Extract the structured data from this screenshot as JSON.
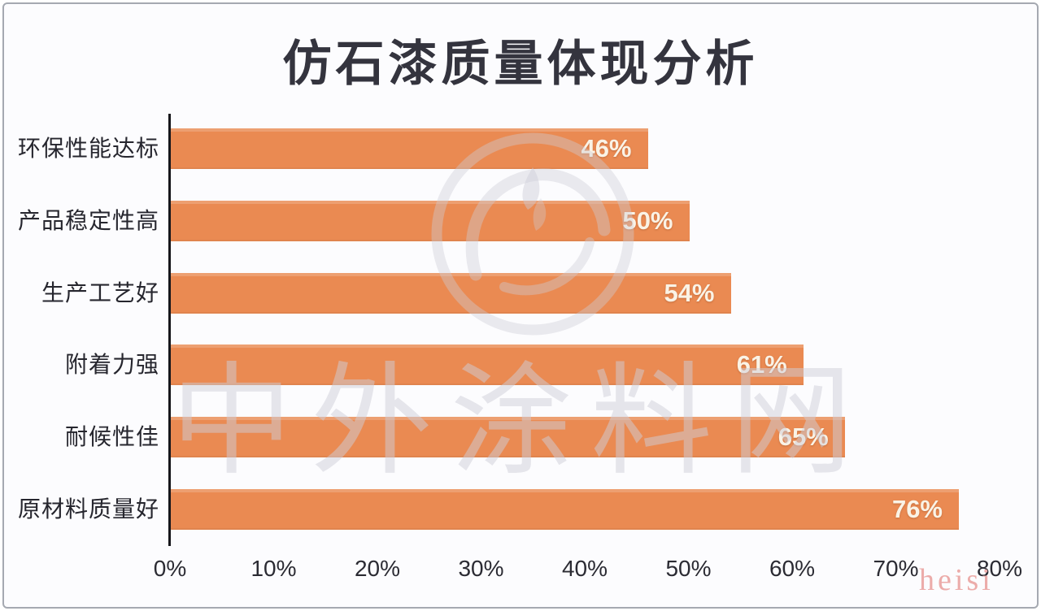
{
  "title": "仿石漆质量体现分析",
  "watermark": {
    "site_text": "中外涂料网",
    "corner_text": "heisi",
    "color": "#cdcdd8",
    "corner_color": "#ecacaa"
  },
  "chart_data": {
    "type": "bar",
    "orientation": "horizontal",
    "title": "仿石漆质量体现分析",
    "categories": [
      "环保性能达标",
      "产品稳定性高",
      "生产工艺好",
      "附着力强",
      "耐候性佳",
      "原材料质量好"
    ],
    "values": [
      46,
      50,
      54,
      61,
      65,
      76
    ],
    "value_labels": [
      "46%",
      "50%",
      "54%",
      "61%",
      "65%",
      "76%"
    ],
    "unit": "%",
    "xlabel": "",
    "ylabel": "",
    "xlim": [
      0,
      80
    ],
    "x_ticks": [
      "0%",
      "10%",
      "20%",
      "30%",
      "40%",
      "50%",
      "60%",
      "70%",
      "80%"
    ],
    "grid": false,
    "legend": null,
    "bar_color": "#EA8A52",
    "value_label_color": "#FAF3E6",
    "axis_line_color": "#16161B",
    "title_color": "#34343E"
  }
}
